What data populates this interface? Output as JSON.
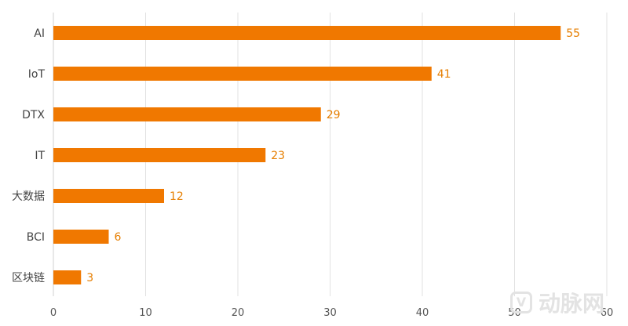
{
  "chart_data": {
    "type": "bar",
    "orientation": "horizontal",
    "categories": [
      "AI",
      "IoT",
      "DTX",
      "IT",
      "大数据",
      "BCI",
      "区块链"
    ],
    "values": [
      55,
      41,
      29,
      23,
      12,
      6,
      3
    ],
    "title": "",
    "xlabel": "",
    "ylabel": "",
    "xlim": [
      0,
      60
    ],
    "xticks": [
      0,
      10,
      20,
      30,
      40,
      50,
      60
    ],
    "grid": "vertical",
    "legend": "none",
    "bar_color": "#f07800",
    "label_color": "#e67e00",
    "grid_color": "#e2e2e2"
  },
  "watermark": {
    "logo_glyph": "V",
    "text": "动脉网"
  }
}
